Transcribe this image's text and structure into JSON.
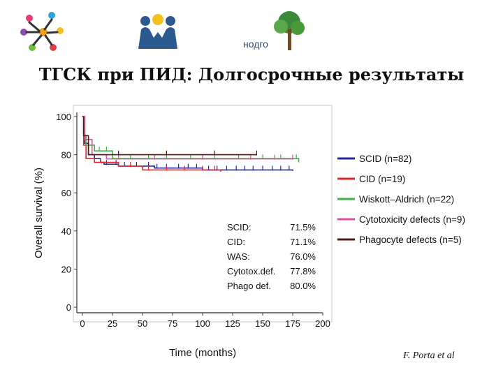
{
  "header": {
    "title": "ТГСК при ПИД: Долгосрочные результаты",
    "logos": [
      {
        "name": "children-circle-logo",
        "icon": "children-circle-icon"
      },
      {
        "name": "children-sun-logo",
        "icon": "children-sun-icon"
      },
      {
        "name": "nodgo-tree-logo",
        "icon": "tree-icon",
        "text": "нодго"
      }
    ]
  },
  "credit": "F. Porta et al",
  "chart_data": {
    "type": "line",
    "xlabel": "Time (months)",
    "ylabel": "Overall survival (%)",
    "xlim": [
      0,
      200
    ],
    "ylim": [
      0,
      100
    ],
    "xticks": [
      0,
      25,
      50,
      75,
      100,
      125,
      150,
      175,
      200
    ],
    "yticks": [
      0,
      20,
      40,
      60,
      80,
      100
    ],
    "grid": false,
    "legend_position": "right",
    "series": [
      {
        "name": "SCID (n=82)",
        "color": "#1f2d9a",
        "steps": [
          [
            0,
            100
          ],
          [
            1,
            90
          ],
          [
            2,
            86
          ],
          [
            5,
            80
          ],
          [
            10,
            78
          ],
          [
            15,
            76
          ],
          [
            18,
            75
          ],
          [
            30,
            74
          ],
          [
            60,
            73
          ],
          [
            100,
            72
          ],
          [
            175,
            71.5
          ]
        ],
        "censor": [
          20,
          28,
          35,
          45,
          55,
          62,
          70,
          80,
          88,
          95,
          105,
          112,
          120,
          128,
          135,
          142,
          150,
          158,
          165,
          172
        ]
      },
      {
        "name": "CID (n=19)",
        "color": "#e8232a",
        "steps": [
          [
            0,
            100
          ],
          [
            1,
            85
          ],
          [
            3,
            78
          ],
          [
            10,
            76
          ],
          [
            30,
            74
          ],
          [
            50,
            72
          ],
          [
            115,
            71.1
          ]
        ],
        "censor": [
          15,
          40,
          55,
          70,
          85,
          100,
          110
        ]
      },
      {
        "name": "Wiskott–Aldrich (n=22)",
        "color": "#3db54a",
        "steps": [
          [
            0,
            100
          ],
          [
            1,
            90
          ],
          [
            3,
            85
          ],
          [
            10,
            82
          ],
          [
            25,
            78
          ],
          [
            180,
            76
          ]
        ],
        "censor": [
          8,
          14,
          20,
          30,
          40,
          55,
          70,
          90,
          110,
          130,
          150,
          165,
          178
        ]
      },
      {
        "name": "Cytotoxicity defects (n=9)",
        "color": "#e04e9c",
        "steps": [
          [
            0,
            100
          ],
          [
            2,
            88
          ],
          [
            8,
            80
          ],
          [
            20,
            77.8
          ],
          [
            175,
            77.8
          ]
        ],
        "censor": [
          30,
          60,
          100,
          140,
          160,
          175
        ]
      },
      {
        "name": "Phagocyte defects (n=5)",
        "color": "#5a1414",
        "steps": [
          [
            0,
            100
          ],
          [
            1,
            90
          ],
          [
            5,
            80
          ],
          [
            145,
            80
          ]
        ],
        "censor": [
          30,
          70,
          110,
          145
        ]
      }
    ],
    "annotations": [
      {
        "label": "SCID:",
        "value": "71.5%"
      },
      {
        "label": "CID:",
        "value": "71.1%"
      },
      {
        "label": "WAS:",
        "value": "76.0%"
      },
      {
        "label": "Cytotox.def.",
        "value": "77.8%"
      },
      {
        "label": "Phago def.",
        "value": "80.0%"
      }
    ]
  }
}
